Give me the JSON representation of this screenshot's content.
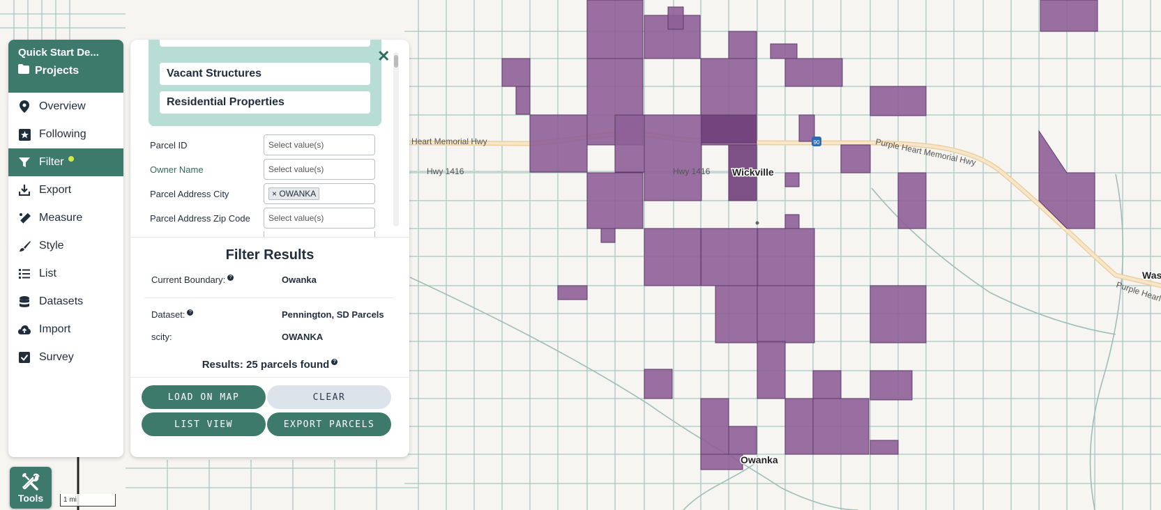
{
  "sidebar": {
    "title": "Quick Start De...",
    "projects_label": "Projects",
    "items": [
      {
        "label": "Overview",
        "icon": "map-pin-icon"
      },
      {
        "label": "Following",
        "icon": "star-icon"
      },
      {
        "label": "Filter",
        "icon": "filter-icon"
      },
      {
        "label": "Export",
        "icon": "download-icon"
      },
      {
        "label": "Measure",
        "icon": "ruler-icon"
      },
      {
        "label": "Style",
        "icon": "brush-icon"
      },
      {
        "label": "List",
        "icon": "list-icon"
      },
      {
        "label": "Datasets",
        "icon": "database-icon"
      },
      {
        "label": "Import",
        "icon": "cloud-upload-icon"
      },
      {
        "label": "Survey",
        "icon": "checkbox-icon"
      }
    ]
  },
  "filter_panel": {
    "saved_filters": [
      "Vacant Structures",
      "Residential Properties"
    ],
    "fields": [
      {
        "label": "Parcel ID",
        "placeholder": "Select value(s)"
      },
      {
        "label": "Owner Name",
        "placeholder": "Select value(s)"
      },
      {
        "label": "Parcel Address City",
        "tag": "OWANKA",
        "tag_remove": "×"
      },
      {
        "label": "Parcel Address Zip Code",
        "placeholder": "Select value(s)"
      }
    ],
    "close": "✕"
  },
  "results": {
    "title": "Filter Results",
    "current_boundary_label": "Current Boundary:",
    "current_boundary_value": "Owanka",
    "dataset_label": "Dataset:",
    "dataset_value": "Pennington, SD Parcels",
    "scity_label": "scity:",
    "scity_value": "OWANKA",
    "summary": "Results: 25 parcels found",
    "info_glyph": "?"
  },
  "buttons": {
    "load": "LOAD ON MAP",
    "clear": "CLEAR",
    "list": "LIST VIEW",
    "export": "EXPORT PARCELS"
  },
  "tools": {
    "label": "Tools"
  },
  "map": {
    "scale": "1 mi",
    "labels": {
      "hwy_left": "Heart Memorial Hwy",
      "hwy_1416_a": "Hwy 1416",
      "hwy_1416_b": "Hwy 1416",
      "purple_heart": "Purple Heart Memorial Hwy",
      "purple_heart_b": "Purple Hearl",
      "wickville": "Wickville",
      "owanka": "Owanka",
      "was": "Was",
      "shield": "90"
    },
    "colors": {
      "parcel": "#8e5f98",
      "highway": "#f3d9b1",
      "road": "#9fc0bb",
      "panel_accent": "#3e7a6c"
    }
  }
}
